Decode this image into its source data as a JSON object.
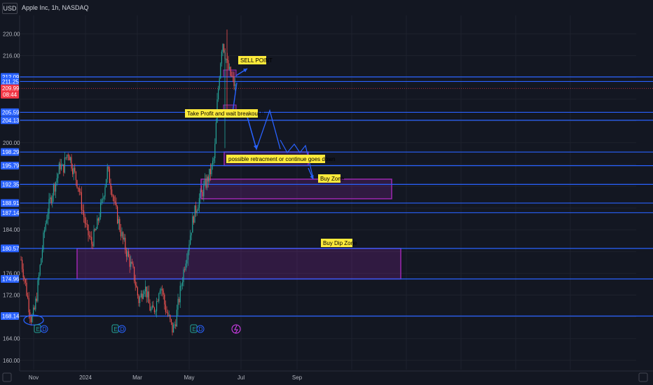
{
  "header": {
    "currency_button": "USD",
    "symbol_title": "Apple Inc, 1h, NASDAQ"
  },
  "chart_data": {
    "type": "candlestick",
    "title": "Apple Inc, 1h, NASDAQ",
    "y_axis": {
      "ticks": [
        220,
        216,
        212,
        208,
        204,
        200,
        196,
        192,
        188,
        184,
        180,
        176,
        172,
        168,
        164,
        160
      ],
      "tick_labels": [
        "220.00",
        "216.00",
        "",
        "",
        "",
        "200.00",
        "",
        "",
        "",
        "184.00",
        "",
        "176.00",
        "172.00",
        "",
        "164.00",
        "160.00"
      ],
      "range": [
        158.3,
        223.4
      ]
    },
    "x_axis": {
      "tick_labels": [
        "Nov",
        "2024",
        "Mar",
        "May",
        "Jul",
        "Sep"
      ]
    },
    "horizontal_levels": [
      212.09,
      211.25,
      205.59,
      204.13,
      198.29,
      195.79,
      192.35,
      188.91,
      187.14,
      180.57,
      174.96,
      168.14
    ],
    "level_labels": [
      "212.09",
      "211.25",
      "205.59",
      "204.13",
      "198.29",
      "195.79",
      "192.35",
      "188.91",
      "187.14",
      "180.57",
      "174.96",
      "168.14"
    ],
    "current_price": {
      "price": "209.99",
      "countdown": "08:44",
      "value": 209.99
    },
    "zones": [
      {
        "label": "Buy Dip Zone",
        "y_from": 174.96,
        "y_to": 180.57
      },
      {
        "label": "Buy Zone",
        "y_from": 189.7,
        "y_to": 193.3
      },
      {
        "label": "",
        "y_from": 195.8,
        "y_to": 198.3
      }
    ],
    "annotations": [
      "SELL POINT",
      "Take Profit and wait breakout !!",
      "possible retracment or continue goes down",
      "Buy Zone",
      "Buy Dip Zone"
    ],
    "earnings_markers": [
      "E",
      "D"
    ],
    "price_path": [
      [
        0,
        178.5
      ],
      [
        2,
        176
      ],
      [
        4,
        173
      ],
      [
        6,
        170
      ],
      [
        8,
        167.5
      ],
      [
        10,
        168.8
      ],
      [
        12,
        172
      ],
      [
        14,
        176
      ],
      [
        16,
        180
      ],
      [
        18,
        184
      ],
      [
        20,
        187
      ],
      [
        22,
        189
      ],
      [
        24,
        191
      ],
      [
        26,
        192.5
      ],
      [
        28,
        194
      ],
      [
        30,
        196
      ],
      [
        32,
        195
      ],
      [
        34,
        197
      ],
      [
        36,
        198.4
      ],
      [
        38,
        196.8
      ],
      [
        40,
        195
      ],
      [
        42,
        193.5
      ],
      [
        44,
        192
      ],
      [
        46,
        189
      ],
      [
        48,
        186.5
      ],
      [
        50,
        184
      ],
      [
        52,
        182.8
      ],
      [
        54,
        181.5
      ],
      [
        56,
        183
      ],
      [
        58,
        184.5
      ],
      [
        60,
        187
      ],
      [
        62,
        189
      ],
      [
        64,
        192
      ],
      [
        66,
        195
      ],
      [
        68,
        193
      ],
      [
        70,
        191
      ],
      [
        72,
        188
      ],
      [
        74,
        186
      ],
      [
        76,
        184
      ],
      [
        78,
        182
      ],
      [
        80,
        180.5
      ],
      [
        82,
        179
      ],
      [
        84,
        177.5
      ],
      [
        86,
        176
      ],
      [
        88,
        173.5
      ],
      [
        90,
        171
      ],
      [
        92,
        172
      ],
      [
        94,
        174
      ],
      [
        96,
        172.5
      ],
      [
        98,
        170
      ],
      [
        100,
        168.8
      ],
      [
        102,
        169.5
      ],
      [
        104,
        171
      ],
      [
        106,
        174
      ],
      [
        108,
        173
      ],
      [
        110,
        170
      ],
      [
        112,
        168.5
      ],
      [
        114,
        167
      ],
      [
        116,
        165.5
      ],
      [
        118,
        167
      ],
      [
        120,
        170
      ],
      [
        122,
        173
      ],
      [
        124,
        176
      ],
      [
        126,
        178.8
      ],
      [
        128,
        181
      ],
      [
        130,
        184
      ],
      [
        132,
        186.5
      ],
      [
        134,
        188
      ],
      [
        136,
        189.5
      ],
      [
        138,
        190.5
      ],
      [
        140,
        191.8
      ],
      [
        142,
        192.8
      ],
      [
        144,
        194
      ],
      [
        146,
        195.5
      ],
      [
        148,
        197.5
      ],
      [
        150,
        207
      ],
      [
        152,
        213.5
      ],
      [
        154,
        219
      ],
      [
        156,
        216.5
      ],
      [
        158,
        214
      ],
      [
        160,
        212.5
      ],
      [
        162,
        211.5
      ],
      [
        164,
        209.99
      ]
    ],
    "price_path_x_units": "trading-days since start of view (not printed on chart)"
  }
}
